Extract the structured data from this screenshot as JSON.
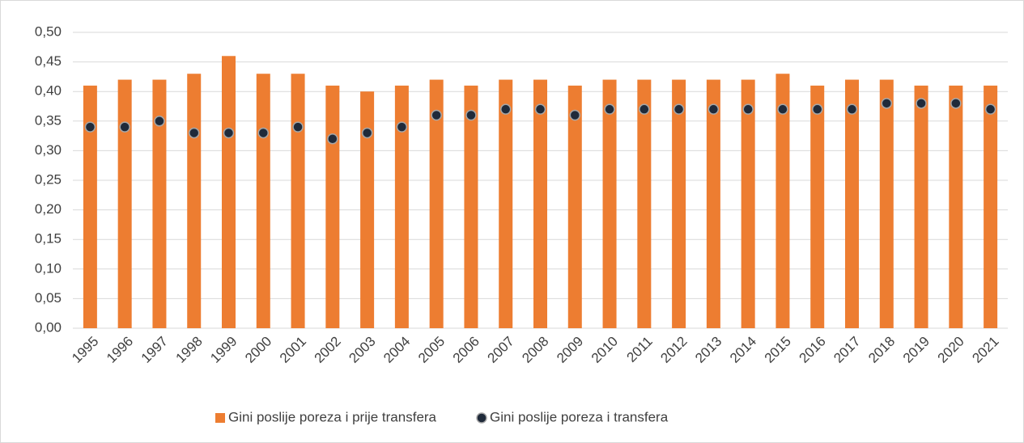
{
  "chart_data": {
    "type": "bar",
    "categories": [
      "1995",
      "1996",
      "1997",
      "1998",
      "1999",
      "2000",
      "2001",
      "2002",
      "2003",
      "2004",
      "2005",
      "2006",
      "2007",
      "2008",
      "2009",
      "2010",
      "2011",
      "2012",
      "2013",
      "2014",
      "2015",
      "2016",
      "2017",
      "2018",
      "2019",
      "2020",
      "2021"
    ],
    "series": [
      {
        "name": "Gini poslije poreza i prije transfera",
        "type": "bar",
        "color": "#ed7d31",
        "values": [
          0.41,
          0.42,
          0.42,
          0.43,
          0.46,
          0.43,
          0.43,
          0.41,
          0.4,
          0.41,
          0.42,
          0.41,
          0.42,
          0.42,
          0.41,
          0.42,
          0.42,
          0.42,
          0.42,
          0.42,
          0.43,
          0.41,
          0.42,
          0.42,
          0.41,
          0.41,
          0.41
        ]
      },
      {
        "name": "Gini poslije poreza i transfera",
        "type": "scatter",
        "color": "#1f2a3a",
        "values": [
          0.34,
          0.34,
          0.35,
          0.33,
          0.33,
          0.33,
          0.34,
          0.32,
          0.33,
          0.34,
          0.36,
          0.36,
          0.37,
          0.37,
          0.36,
          0.37,
          0.37,
          0.37,
          0.37,
          0.37,
          0.37,
          0.37,
          0.37,
          0.38,
          0.38,
          0.38,
          0.37
        ]
      }
    ],
    "ylim": [
      0,
      0.5
    ],
    "yticks": [
      {
        "value": 0,
        "label": "0,00"
      },
      {
        "value": 0.05,
        "label": "0,05"
      },
      {
        "value": 0.1,
        "label": "0,10"
      },
      {
        "value": 0.15,
        "label": "0,15"
      },
      {
        "value": 0.2,
        "label": "0,20"
      },
      {
        "value": 0.25,
        "label": "0,25"
      },
      {
        "value": 0.3,
        "label": "0,30"
      },
      {
        "value": 0.35,
        "label": "0,35"
      },
      {
        "value": 0.4,
        "label": "0,40"
      },
      {
        "value": 0.45,
        "label": "0,45"
      },
      {
        "value": 0.5,
        "label": "0,50"
      }
    ],
    "grid": true,
    "legend": "bottom"
  }
}
